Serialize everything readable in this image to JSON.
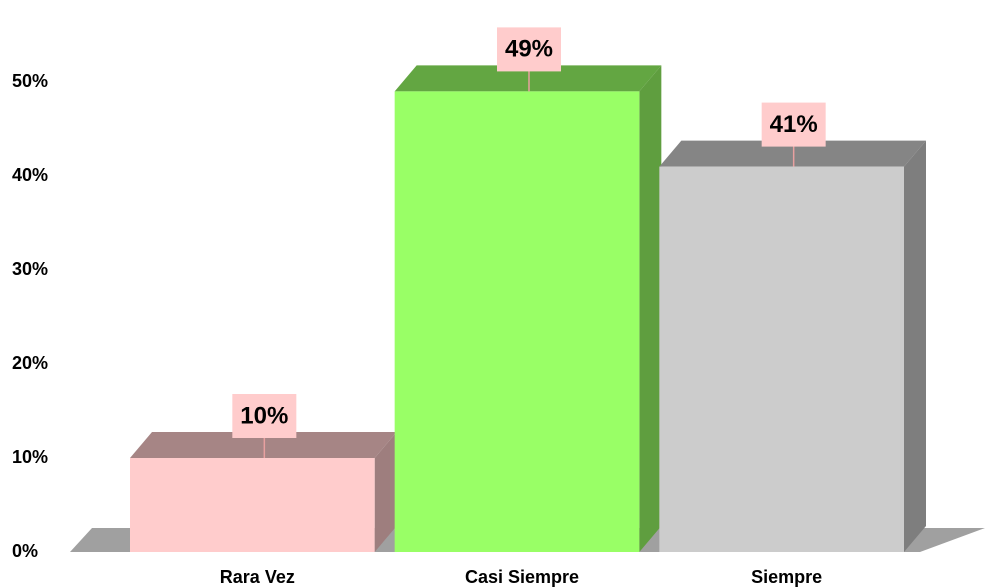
{
  "chart_data": {
    "type": "bar3d",
    "categories": [
      "Rara Vez",
      "Casi Siempre",
      "Siempre"
    ],
    "values": [
      10,
      49,
      41
    ],
    "value_labels": [
      "10%",
      "49%",
      "41%"
    ],
    "colors": [
      "#ffcccc",
      "#99ff66",
      "#cccccc"
    ],
    "ylim": [
      0,
      50
    ],
    "yticks": [
      {
        "value": 0,
        "label": "0%"
      },
      {
        "value": 10,
        "label": "10%"
      },
      {
        "value": 20,
        "label": "20%"
      },
      {
        "value": 30,
        "label": "30%"
      },
      {
        "value": 40,
        "label": "40%"
      },
      {
        "value": 50,
        "label": "50%"
      }
    ],
    "grid": false
  }
}
